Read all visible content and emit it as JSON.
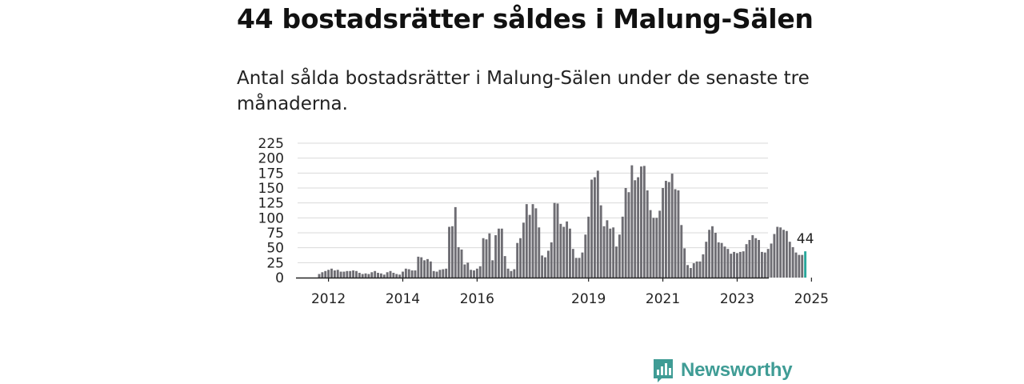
{
  "title": "44 bostadsrätter såldes i Malung-Sälen",
  "subtitle": "Antal sålda bostadsrätter i Malung-Sälen under de senaste tre månaderna.",
  "brand": {
    "name": "Newsworthy",
    "icon": "newsworthy-logo-icon",
    "color": "#3f9c95"
  },
  "chart_data": {
    "type": "bar",
    "title": "",
    "xlabel": "",
    "ylabel": "",
    "ylim": [
      0,
      225
    ],
    "yticks": [
      "0",
      "25",
      "50",
      "75",
      "100",
      "125",
      "150",
      "175",
      "200",
      "225"
    ],
    "xticks": [
      {
        "label": "2012",
        "index": 3
      },
      {
        "label": "2014",
        "index": 27
      },
      {
        "label": "2016",
        "index": 51
      },
      {
        "label": "2019",
        "index": 87
      },
      {
        "label": "2021",
        "index": 111
      },
      {
        "label": "2023",
        "index": 135
      },
      {
        "label": "2025",
        "index": 159
      }
    ],
    "bar_color": "#6e6d73",
    "highlight_color": "#2aa89c",
    "highlight_label": "44",
    "values": [
      6,
      9,
      11,
      13,
      15,
      12,
      13,
      10,
      10,
      11,
      11,
      12,
      11,
      8,
      6,
      7,
      6,
      9,
      11,
      8,
      7,
      5,
      9,
      11,
      8,
      6,
      5,
      10,
      15,
      14,
      12,
      12,
      35,
      34,
      29,
      31,
      27,
      11,
      10,
      13,
      14,
      15,
      85,
      86,
      118,
      51,
      47,
      22,
      25,
      13,
      12,
      15,
      19,
      66,
      64,
      74,
      29,
      71,
      82,
      82,
      36,
      15,
      11,
      14,
      58,
      66,
      92,
      123,
      105,
      123,
      116,
      84,
      37,
      34,
      45,
      59,
      125,
      124,
      90,
      85,
      94,
      82,
      48,
      33,
      33,
      42,
      72,
      102,
      164,
      168,
      179,
      121,
      86,
      96,
      82,
      84,
      52,
      72,
      102,
      150,
      143,
      188,
      163,
      168,
      186,
      187,
      146,
      113,
      100,
      100,
      112,
      150,
      162,
      160,
      174,
      148,
      146,
      88,
      49,
      21,
      16,
      24,
      27,
      27,
      39,
      60,
      80,
      86,
      75,
      59,
      58,
      52,
      48,
      40,
      43,
      41,
      43,
      44,
      56,
      63,
      71,
      66,
      63,
      43,
      42,
      48,
      57,
      73,
      85,
      84,
      80,
      78,
      60,
      51,
      42,
      38,
      38,
      44
    ]
  }
}
